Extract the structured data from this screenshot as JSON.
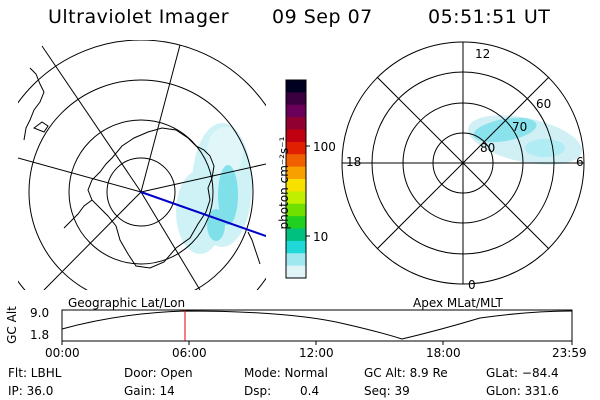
{
  "header": {
    "instrument": "Ultraviolet Imager",
    "date": "09 Sep 07",
    "time": "05:51:51 UT"
  },
  "colorbar": {
    "unit_label": "photon cm⁻²s⁻¹",
    "ticks": [
      "100",
      "10"
    ],
    "colors": [
      "#000020",
      "#3a0040",
      "#6a005a",
      "#900030",
      "#c00010",
      "#e02000",
      "#f06000",
      "#f8a000",
      "#f8e000",
      "#c0f000",
      "#70e000",
      "#20d020",
      "#00c080",
      "#20d8d8",
      "#a0e8f0",
      "#e0f4f8"
    ]
  },
  "panels": {
    "left_label": "Geographic Lat/Lon",
    "right_label": "Apex MLat/MLT",
    "mlt_labels": {
      "top": "12",
      "right": "6",
      "bottom": "0",
      "left": "18"
    },
    "mlat_labels": [
      "60",
      "70",
      "80"
    ]
  },
  "altitude_plot": {
    "ylabel": "GC Alt",
    "y_ticks": [
      "9.0",
      "1.8"
    ],
    "x_ticks": [
      "00:00",
      "06:00",
      "12:00",
      "18:00",
      "23:59"
    ],
    "cursor_color": "#e00000"
  },
  "info": {
    "flt": "Flt: LBHL",
    "door": "Door: Open",
    "mode": "Mode: Normal",
    "gc_alt": "GC Alt: 8.9 Re",
    "glat": "GLat: −84.4",
    "ip": "IP: 36.0",
    "gain": "Gain: 14",
    "dsp_label": "Dsp:",
    "dsp_value": "0.4",
    "seq": "Seq: 39",
    "glon": "GLon: 331.6"
  }
}
